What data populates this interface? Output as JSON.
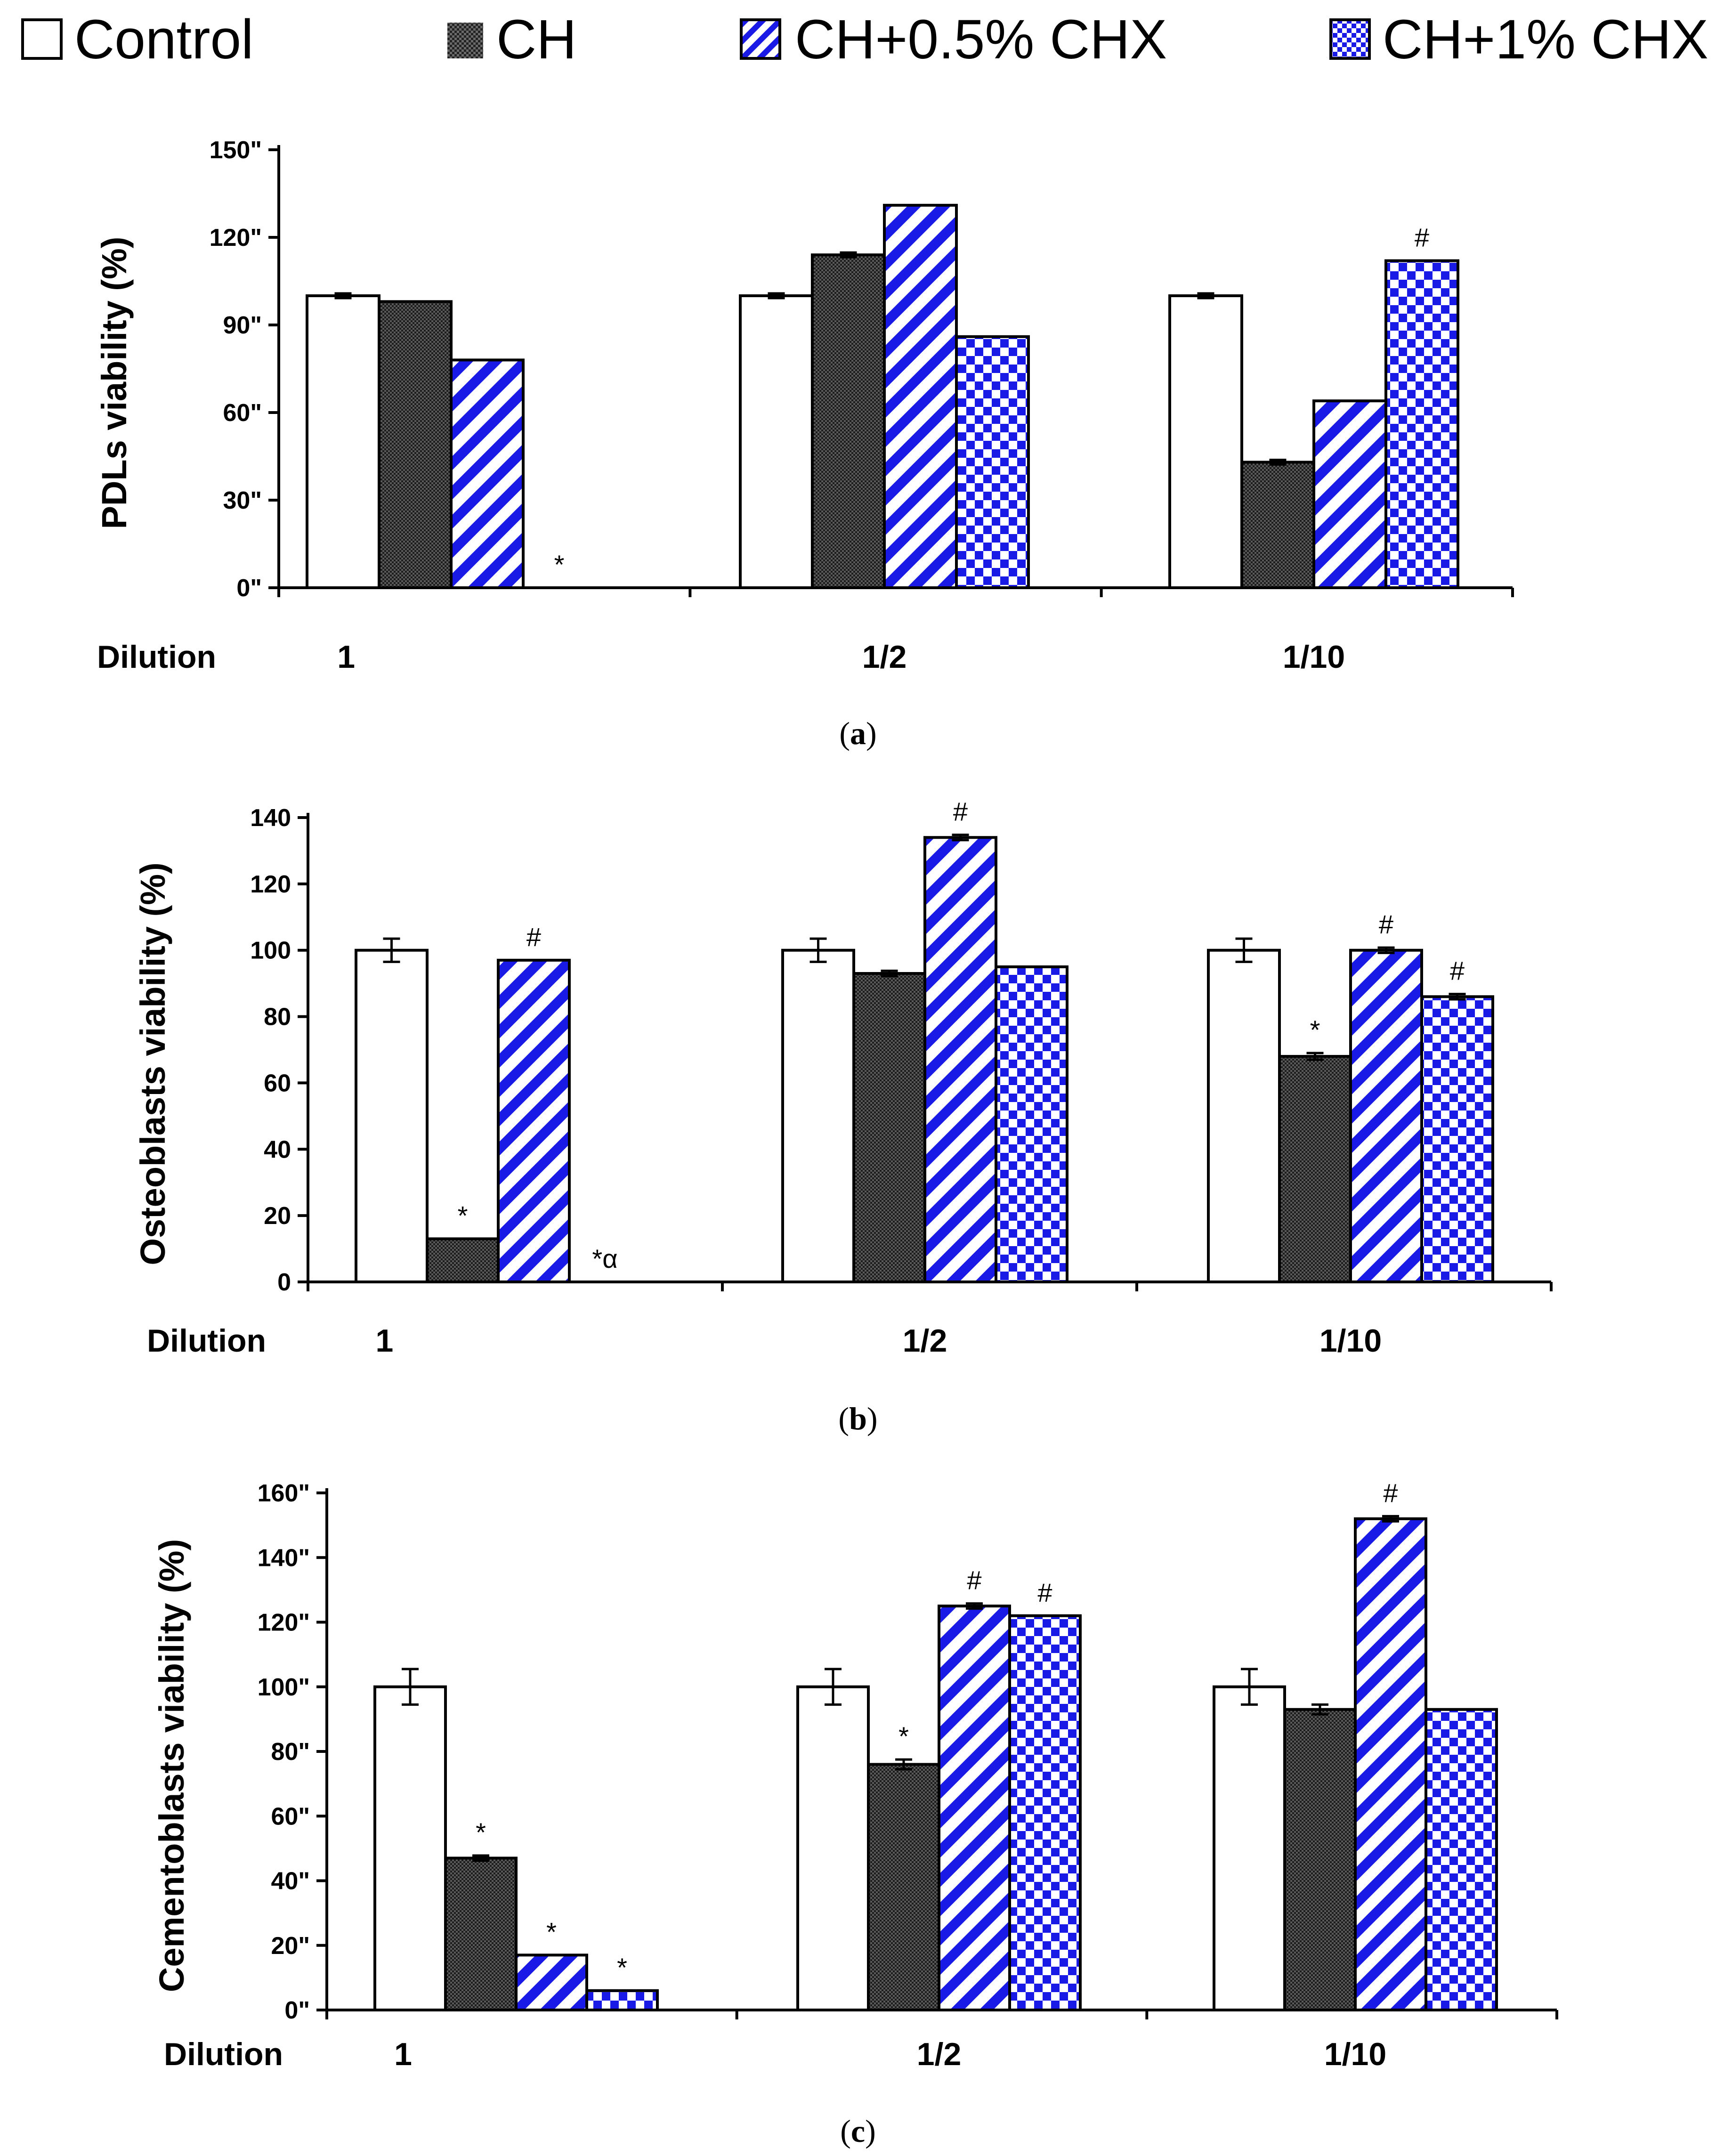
{
  "legend": {
    "items": [
      {
        "label": "Control",
        "pattern": "open"
      },
      {
        "label": "CH",
        "pattern": "dots"
      },
      {
        "label": "CH+0.5% CHX",
        "pattern": "stripe"
      },
      {
        "label": "CH+1% CHX",
        "pattern": "check"
      }
    ]
  },
  "colors": {
    "accent_blue": "#1a1ae6",
    "dark_fill": "#3a3a3a",
    "axis": "#000000"
  },
  "chart_data": [
    {
      "type": "bar",
      "panel_label": "a",
      "title": "",
      "ylabel": "PDLs viability (%)",
      "xlabel_prefix": "Dilution",
      "categories": [
        "1",
        "1/2",
        "1/10"
      ],
      "ylim": [
        0,
        150
      ],
      "yticks": [
        0,
        30,
        60,
        90,
        120,
        150
      ],
      "ytick_labels": [
        "0\"",
        "30\"",
        "60\"",
        "90\"",
        "120\"",
        "150\""
      ],
      "series": [
        {
          "name": "Control",
          "values": [
            100,
            100,
            100
          ],
          "errors": [
            0.8,
            0.8,
            0.8
          ]
        },
        {
          "name": "CH",
          "values": [
            98,
            114,
            43
          ],
          "errors": [
            0,
            0.8,
            0.8
          ]
        },
        {
          "name": "CH+0.5% CHX",
          "values": [
            78,
            131,
            64
          ],
          "errors": [
            0,
            0,
            0
          ]
        },
        {
          "name": "CH+1% CHX",
          "values": [
            0,
            86,
            112
          ],
          "errors": [
            0,
            0,
            0
          ]
        }
      ],
      "annotations": [
        {
          "category": 0,
          "series": 3,
          "text": "*"
        },
        {
          "category": 2,
          "series": 3,
          "text": "#"
        }
      ]
    },
    {
      "type": "bar",
      "panel_label": "b",
      "title": "",
      "ylabel": "Osteoblasts viability (%)",
      "xlabel_prefix": "Dilution",
      "categories": [
        "1",
        "1/2",
        "1/10"
      ],
      "ylim": [
        0,
        140
      ],
      "yticks": [
        0,
        20,
        40,
        60,
        80,
        100,
        120,
        140
      ],
      "ytick_labels": [
        "0",
        "20",
        "40",
        "60",
        "80",
        "100",
        "120",
        "140"
      ],
      "series": [
        {
          "name": "Control",
          "values": [
            100,
            100,
            100
          ],
          "errors": [
            3.5,
            3.5,
            3.5
          ]
        },
        {
          "name": "CH",
          "values": [
            13,
            93,
            68
          ],
          "errors": [
            0,
            0.8,
            1
          ]
        },
        {
          "name": "CH+0.5% CHX",
          "values": [
            97,
            134,
            100
          ],
          "errors": [
            0,
            0.8,
            0.8
          ]
        },
        {
          "name": "CH+1% CHX",
          "values": [
            0,
            95,
            86
          ],
          "errors": [
            0,
            0,
            0.8
          ]
        }
      ],
      "annotations": [
        {
          "category": 0,
          "series": 1,
          "text": "*"
        },
        {
          "category": 0,
          "series": 2,
          "text": "#"
        },
        {
          "category": 0,
          "series": 3,
          "text": "*α"
        },
        {
          "category": 1,
          "series": 2,
          "text": "#"
        },
        {
          "category": 2,
          "series": 1,
          "text": "*"
        },
        {
          "category": 2,
          "series": 2,
          "text": "#"
        },
        {
          "category": 2,
          "series": 3,
          "text": "#"
        }
      ]
    },
    {
      "type": "bar",
      "panel_label": "c",
      "title": "",
      "ylabel": "Cementoblasts viability (%)",
      "xlabel_prefix": "Dilution",
      "categories": [
        "1",
        "1/2",
        "1/10"
      ],
      "ylim": [
        0,
        160
      ],
      "yticks": [
        0,
        20,
        40,
        60,
        80,
        100,
        120,
        140,
        160
      ],
      "ytick_labels": [
        "0\"",
        "20\"",
        "40\"",
        "60\"",
        "80\"",
        "100\"",
        "120\"",
        "140\"",
        "160\""
      ],
      "series": [
        {
          "name": "Control",
          "values": [
            100,
            100,
            100
          ],
          "errors": [
            5.5,
            5.5,
            5.5
          ]
        },
        {
          "name": "CH",
          "values": [
            47,
            76,
            93
          ],
          "errors": [
            0.8,
            1.5,
            1.5
          ]
        },
        {
          "name": "CH+0.5% CHX",
          "values": [
            17,
            125,
            152
          ],
          "errors": [
            0,
            0.8,
            0.8
          ]
        },
        {
          "name": "CH+1% CHX",
          "values": [
            6,
            122,
            93
          ],
          "errors": [
            0,
            0,
            0
          ]
        }
      ],
      "annotations": [
        {
          "category": 0,
          "series": 1,
          "text": "*"
        },
        {
          "category": 0,
          "series": 2,
          "text": "*"
        },
        {
          "category": 0,
          "series": 3,
          "text": "*"
        },
        {
          "category": 1,
          "series": 1,
          "text": "*"
        },
        {
          "category": 1,
          "series": 2,
          "text": "#"
        },
        {
          "category": 1,
          "series": 3,
          "text": "#"
        },
        {
          "category": 2,
          "series": 2,
          "text": "#"
        }
      ]
    }
  ]
}
